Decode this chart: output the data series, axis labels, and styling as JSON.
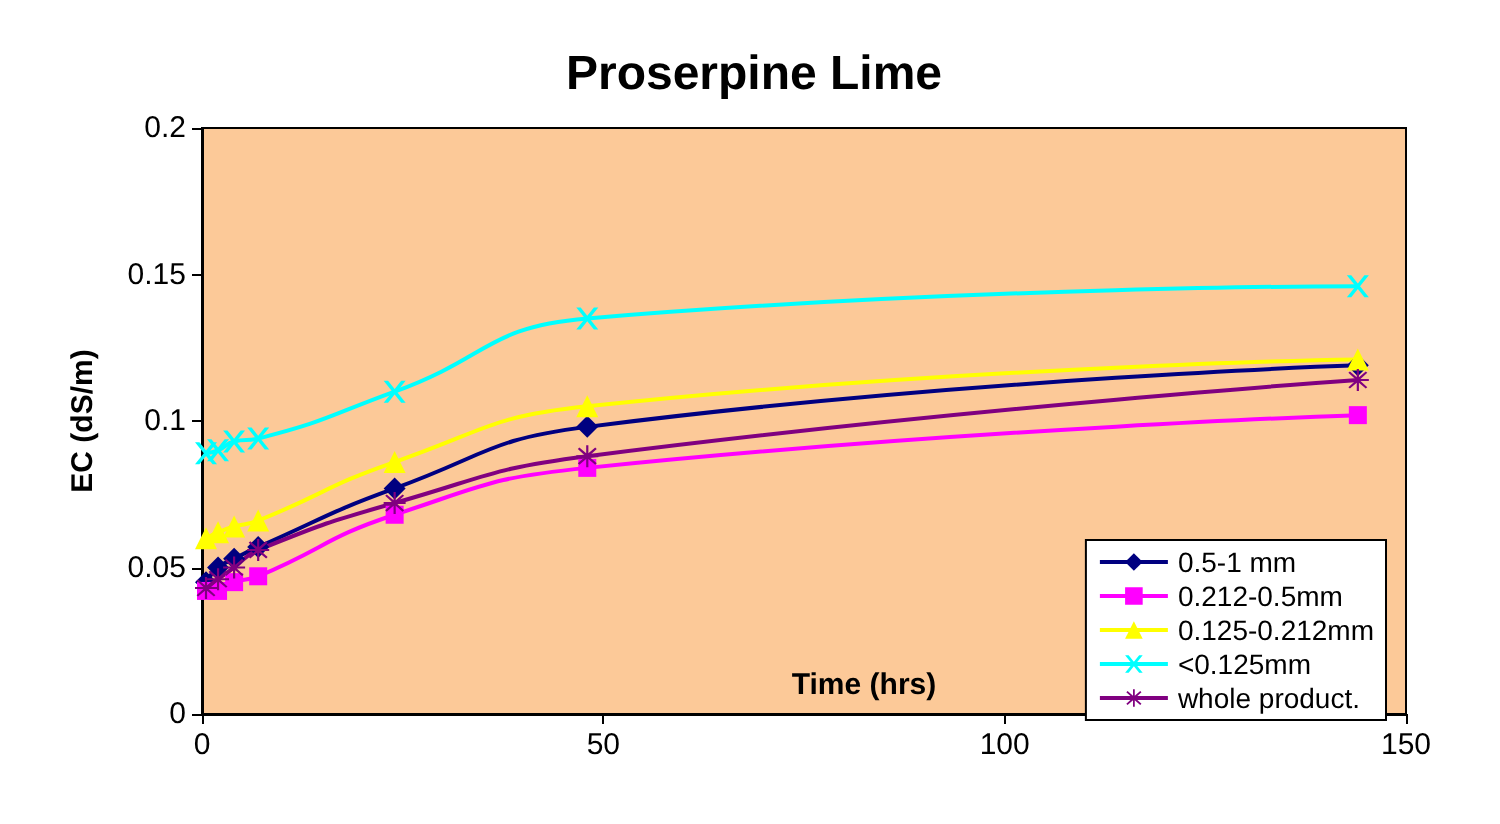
{
  "chart_data": {
    "type": "line",
    "title": "Proserpine Lime",
    "xlabel": "Time (hrs)",
    "ylabel": "EC (dS/m)",
    "x": [
      0.5,
      2,
      4,
      7,
      24,
      48,
      144
    ],
    "series": [
      {
        "name": "0.5-1 mm",
        "color": "#000080",
        "marker": "diamond",
        "values": [
          0.045,
          0.05,
          0.053,
          0.057,
          0.077,
          0.098,
          0.119
        ]
      },
      {
        "name": "0.212-0.5mm",
        "color": "#ff00ff",
        "marker": "square",
        "values": [
          0.042,
          0.042,
          0.045,
          0.047,
          0.068,
          0.084,
          0.102
        ]
      },
      {
        "name": "0.125-0.212mm",
        "color": "#ffff00",
        "marker": "triangle",
        "values": [
          0.06,
          0.062,
          0.064,
          0.066,
          0.086,
          0.105,
          0.121
        ]
      },
      {
        "name": "<0.125mm",
        "color": "#00ffff",
        "marker": "cross",
        "values": [
          0.089,
          0.09,
          0.093,
          0.094,
          0.11,
          0.135,
          0.146
        ]
      },
      {
        "name": "whole product.",
        "color": "#800080",
        "marker": "star",
        "values": [
          0.043,
          0.046,
          0.05,
          0.056,
          0.072,
          0.088,
          0.114
        ]
      }
    ],
    "xlim": [
      0,
      150
    ],
    "xticks": [
      0,
      50,
      100,
      150
    ],
    "ylim": [
      0,
      0.2
    ],
    "yticks": [
      0,
      0.05,
      0.1,
      0.15,
      0.2
    ],
    "grid": false,
    "legend": "bottom right",
    "line_style": "solid"
  }
}
